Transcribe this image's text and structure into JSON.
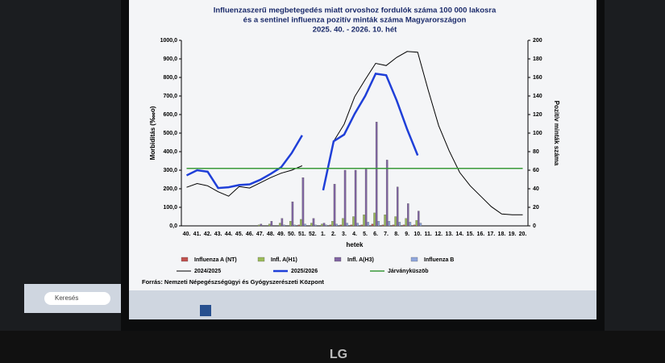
{
  "chart_data": {
    "type": "bar-line",
    "title": [
      "Influenzaszerű megbetegedés miatt orvoshoz fordulók száma 100 000 lakosra",
      "és a sentinel influenza pozitív minták száma Magyarországon",
      "2025. 40. - 2026. 10. hét"
    ],
    "ylabel": "Morbiditás (‱o)",
    "y2label": "Pozitív minták száma",
    "xlabel": "hetek",
    "source": "Forrás: Nemzeti Népegészségügyi és Gyógyszerészeti Központ",
    "categories": [
      "40.",
      "41.",
      "42.",
      "43.",
      "44.",
      "45.",
      "46.",
      "47.",
      "48.",
      "49.",
      "50.",
      "51.",
      "52.",
      "1.",
      "2.",
      "3.",
      "4.",
      "5.",
      "6.",
      "7.",
      "8.",
      "9.",
      "10.",
      "11.",
      "12.",
      "13.",
      "14.",
      "15.",
      "16.",
      "17.",
      "18.",
      "19.",
      "20."
    ],
    "ylim": [
      0,
      1000
    ],
    "yticks": [
      {
        "value": 0,
        "label": "0,0"
      },
      {
        "value": 100,
        "label": "100,0"
      },
      {
        "value": 200,
        "label": "200,0"
      },
      {
        "value": 300,
        "label": "300,0"
      },
      {
        "value": 400,
        "label": "400,0"
      },
      {
        "value": 500,
        "label": "500,0"
      },
      {
        "value": 600,
        "label": "600,0"
      },
      {
        "value": 700,
        "label": "700,0"
      },
      {
        "value": 800,
        "label": "800,0"
      },
      {
        "value": 900,
        "label": "900,0"
      },
      {
        "value": 1000,
        "label": "1000,0"
      }
    ],
    "y2lim": [
      0,
      200
    ],
    "y2ticks": [
      0,
      20,
      40,
      60,
      80,
      100,
      120,
      140,
      160,
      180,
      200
    ],
    "series": [
      {
        "name": "Influenza A (NT)",
        "color": "#c0504d",
        "kind": "bar",
        "axis": "y2",
        "values": [
          0,
          0,
          0,
          0,
          0,
          0,
          0,
          0,
          0,
          0,
          0,
          1,
          0,
          0,
          1,
          1,
          1,
          1,
          2,
          1,
          1,
          1,
          1,
          null,
          null,
          null,
          null,
          null,
          null,
          null,
          null,
          null,
          null
        ]
      },
      {
        "name": "Infl. A(H1)",
        "color": "#9bbb59",
        "kind": "bar",
        "axis": "y2",
        "values": [
          0,
          0,
          0,
          0,
          0,
          0,
          0,
          1,
          2,
          3,
          5,
          7,
          3,
          2,
          5,
          8,
          10,
          12,
          14,
          12,
          10,
          8,
          6,
          null,
          null,
          null,
          null,
          null,
          null,
          null,
          null,
          null,
          null
        ]
      },
      {
        "name": "Infl. A(H3)",
        "color": "#8064a2",
        "kind": "bar",
        "axis": "y2",
        "values": [
          0,
          0,
          0,
          0,
          0,
          0,
          0,
          2,
          5,
          8,
          26,
          52,
          8,
          3,
          45,
          60,
          60,
          61,
          112,
          71,
          42,
          24,
          16,
          null,
          null,
          null,
          null,
          null,
          null,
          null,
          null,
          null,
          null
        ]
      },
      {
        "name": "Influenza B",
        "color": "#8fa6dc",
        "kind": "bar",
        "axis": "y2",
        "values": [
          0,
          0,
          0,
          0,
          0,
          0,
          0,
          0,
          0,
          1,
          1,
          2,
          1,
          1,
          2,
          3,
          3,
          4,
          5,
          5,
          4,
          4,
          3,
          null,
          null,
          null,
          null,
          null,
          null,
          null,
          null,
          null,
          null
        ]
      },
      {
        "name": "2024/2025",
        "color": "#000000",
        "kind": "line",
        "width": 1,
        "values": [
          208,
          228,
          216,
          184,
          160,
          212,
          204,
          232,
          260,
          284,
          300,
          324,
          null,
          null,
          456,
          548,
          696,
          788,
          876,
          864,
          908,
          940,
          936,
          732,
          540,
          404,
          288,
          216,
          160,
          104,
          64,
          60,
          60
        ]
      },
      {
        "name": "2025/2026",
        "color": "#1f3fd8",
        "kind": "line",
        "width": 2.5,
        "values": [
          272,
          300,
          292,
          204,
          208,
          220,
          224,
          248,
          280,
          316,
          392,
          488,
          null,
          192,
          456,
          492,
          604,
          700,
          820,
          812,
          676,
          520,
          380,
          null,
          null,
          null,
          null,
          null,
          null,
          null,
          null,
          null,
          null
        ]
      },
      {
        "name": "Járványküszöb",
        "color": "#3a9a3a",
        "kind": "line",
        "width": 1.5,
        "values": [
          310,
          310,
          310,
          310,
          310,
          310,
          310,
          310,
          310,
          310,
          310,
          310,
          310,
          310,
          310,
          310,
          310,
          310,
          310,
          310,
          310,
          310,
          310,
          310,
          310,
          310,
          310,
          310,
          310,
          310,
          310,
          310,
          310
        ]
      }
    ]
  },
  "ui": {
    "taskbar_search": "Keresés",
    "brand": "LG"
  }
}
